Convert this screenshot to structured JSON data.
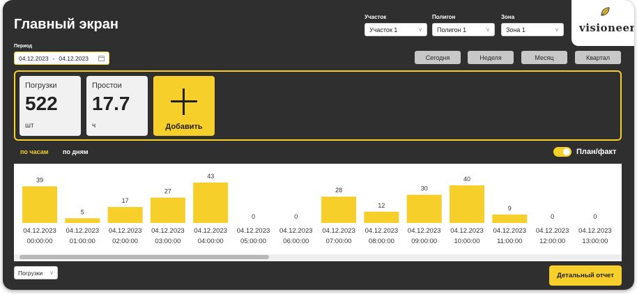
{
  "header": {
    "title": "Главный экран"
  },
  "filters": [
    {
      "label": "Участок",
      "value": "Участок 1"
    },
    {
      "label": "Полигон",
      "value": "Полигон 1"
    },
    {
      "label": "Зона",
      "value": "Зона 1"
    }
  ],
  "logo": {
    "text": "visioneer"
  },
  "period": {
    "label": "Период",
    "from": "04.12.2023",
    "separator": "-",
    "to": "04.12.2023"
  },
  "ranges": [
    "Сегодня",
    "Неделя",
    "Месяц",
    "Квартал"
  ],
  "cards": [
    {
      "label": "Погрузки",
      "value": "522",
      "unit": "шт"
    },
    {
      "label": "Простои",
      "value": "17.7",
      "unit": "ч"
    }
  ],
  "add_card": {
    "label": "Добавить"
  },
  "tabs": {
    "hourly": "по часам",
    "daily": "по дням"
  },
  "toggle": {
    "label": "План/факт"
  },
  "colors": {
    "accent": "#f7cf2a",
    "background": "#2f2f2f"
  },
  "chart_data": {
    "type": "bar",
    "categories": [
      "04.12.2023 00:00:00",
      "04.12.2023 01:00:00",
      "04.12.2023 02:00:00",
      "04.12.2023 03:00:00",
      "04.12.2023 04:00:00",
      "04.12.2023 05:00:00",
      "04.12.2023 06:00:00",
      "04.12.2023 07:00:00",
      "04.12.2023 08:00:00",
      "04.12.2023 09:00:00",
      "04.12.2023 10:00:00",
      "04.12.2023 11:00:00",
      "04.12.2023 12:00:00",
      "04.12.2023 13:00:00"
    ],
    "category_lines": [
      [
        "04.12.2023",
        "00:00:00"
      ],
      [
        "04.12.2023",
        "01:00:00"
      ],
      [
        "04.12.2023",
        "02:00:00"
      ],
      [
        "04.12.2023",
        "03:00:00"
      ],
      [
        "04.12.2023",
        "04:00:00"
      ],
      [
        "04.12.2023",
        "05:00:00"
      ],
      [
        "04.12.2023",
        "06:00:00"
      ],
      [
        "04.12.2023",
        "07:00:00"
      ],
      [
        "04.12.2023",
        "08:00:00"
      ],
      [
        "04.12.2023",
        "09:00:00"
      ],
      [
        "04.12.2023",
        "10:00:00"
      ],
      [
        "04.12.2023",
        "11:00:00"
      ],
      [
        "04.12.2023",
        "12:00:00"
      ],
      [
        "04.12.2023",
        "13:00:00"
      ]
    ],
    "values": [
      39,
      5,
      17,
      27,
      43,
      0,
      0,
      28,
      12,
      30,
      40,
      9,
      0,
      0
    ],
    "title": "",
    "xlabel": "",
    "ylabel": "",
    "grid": false,
    "bar_color": "#f7cf2a"
  },
  "bottom": {
    "metric_select": "Погрузки",
    "report_button": "Детальный отчет"
  }
}
